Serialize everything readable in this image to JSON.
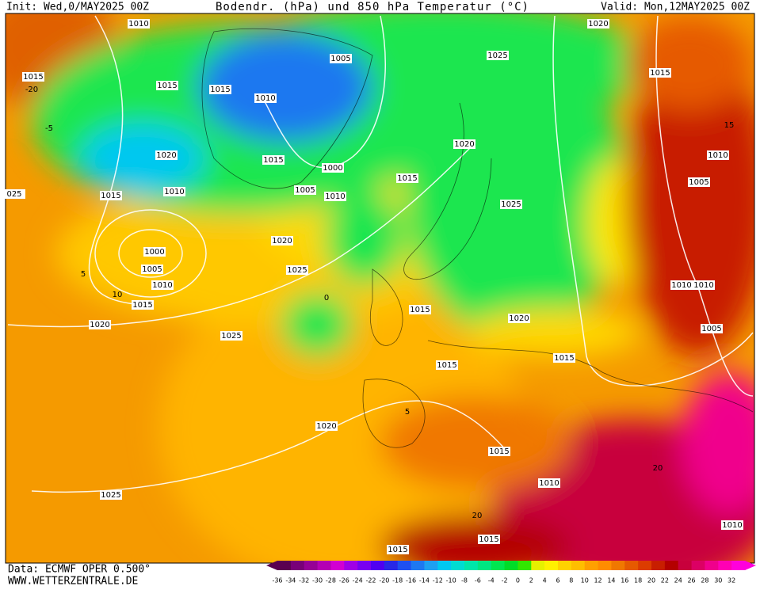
{
  "header": {
    "init": "Init: Wed,0/MAY2025 00Z",
    "title": "Bodendr. (hPa) und 850 hPa Temperatur (°C)",
    "valid": "Valid: Mon,12MAY2025 00Z"
  },
  "isobar_labels": [
    "1010",
    "1005",
    "1025",
    "1020",
    "1015",
    "1015",
    "1015",
    "1015",
    "1010",
    "1020",
    "1015",
    "1000",
    "1005",
    "1010",
    "1015",
    "1020",
    "1025",
    "1015",
    "1010",
    "1020",
    "1025",
    "1000",
    "1005",
    "1010",
    "1015",
    "1020",
    "1025",
    "1015",
    "1020",
    "1015",
    "1015",
    "1020",
    "1015",
    "1010",
    "1025",
    "1015",
    "1015",
    "1010",
    "1005",
    "1010",
    "1005",
    "1010",
    "1010",
    "025"
  ],
  "temperature_labels": [
    "-20",
    "-5",
    "5",
    "10",
    "15",
    "20",
    "20",
    "0",
    "5"
  ],
  "colorbar": {
    "labels": [
      "-36",
      "-34",
      "-32",
      "-30",
      "-28",
      "-26",
      "-24",
      "-22",
      "-20",
      "-18",
      "-16",
      "-14",
      "-12",
      "-10",
      "-8",
      "-6",
      "-4",
      "-2",
      "0",
      "2",
      "4",
      "6",
      "8",
      "10",
      "12",
      "14",
      "16",
      "18",
      "20",
      "22",
      "24",
      "26",
      "28",
      "30",
      "32"
    ],
    "colors": [
      "#5a0050",
      "#780078",
      "#960096",
      "#b400b4",
      "#d200d2",
      "#a000e6",
      "#7800f0",
      "#5000f0",
      "#2828e6",
      "#1e50f0",
      "#1e78f0",
      "#1ea0f0",
      "#00c8f0",
      "#00dcd2",
      "#00e6aa",
      "#00e682",
      "#00e650",
      "#00dc28",
      "#32e600",
      "#e6f000",
      "#fff000",
      "#ffd200",
      "#ffbe00",
      "#ffa000",
      "#ff8c00",
      "#f07800",
      "#e65a00",
      "#dc3c00",
      "#c81e00",
      "#b40000",
      "#c8003c",
      "#dc0064",
      "#f0008c",
      "#ff00b4",
      "#ff00dc"
    ]
  },
  "footer": {
    "data": "Data: ECMWF OPER 0.500°",
    "site": "WWW.WETTERZENTRALE.DE"
  }
}
